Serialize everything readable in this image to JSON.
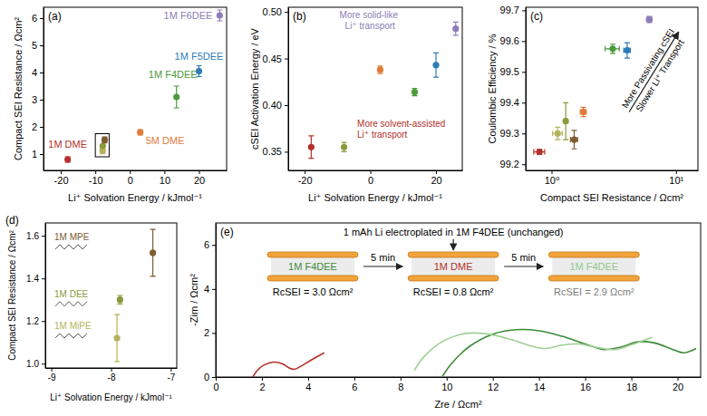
{
  "chart_data": [
    {
      "type": "scatter",
      "title": "(a)",
      "x_label": "Li⁺ Solvation Energy / kJmol⁻¹",
      "y_label": "Compact SEI Resistance / Ωcm²",
      "xlim": [
        -25,
        28
      ],
      "xticks": [
        -20,
        -10,
        0,
        10,
        20
      ],
      "ylim": [
        0.4,
        6.4
      ],
      "yticks": [
        1,
        2,
        3,
        4,
        5,
        6
      ],
      "series": [
        {
          "name": "1M DME",
          "color": "#b5302a",
          "x": [
            -18
          ],
          "values": [
            0.8
          ],
          "errors": [
            0.1
          ]
        },
        {
          "color": "#b3b35c",
          "x": [
            -7.9
          ],
          "values": [
            1.12
          ],
          "errors": [
            0.11
          ]
        },
        {
          "color": "#8c9a3c",
          "x": [
            -7.85
          ],
          "values": [
            1.3
          ],
          "errors": [
            0.02
          ]
        },
        {
          "color": "#7d5c2e",
          "x": [
            -7.3
          ],
          "values": [
            1.52
          ],
          "errors": [
            0.11
          ]
        },
        {
          "name": "5M DME",
          "color": "#e07b39",
          "x": [
            3
          ],
          "values": [
            1.8
          ],
          "errors": [
            0.1
          ]
        },
        {
          "name": "1M F4DEE",
          "color": "#4a9a3c",
          "x": [
            13.5
          ],
          "values": [
            3.1
          ],
          "errors": [
            0.4
          ]
        },
        {
          "name": "1M F5DEE",
          "color": "#2e7bb5",
          "x": [
            20
          ],
          "values": [
            4.05
          ],
          "errors": [
            0.2
          ]
        },
        {
          "name": "1M F6DEE",
          "color": "#8c7fb8",
          "x": [
            26
          ],
          "values": [
            6.1
          ],
          "errors": [
            0.2
          ]
        }
      ]
    },
    {
      "type": "scatter",
      "title": "(b)",
      "x_label": "Li⁺ Solvation Energy / kJmol⁻¹",
      "y_label": "cSEI Activation Energy / eV",
      "xlim": [
        -25,
        28
      ],
      "xticks": [
        -20,
        0,
        20
      ],
      "ylim": [
        0.33,
        0.505
      ],
      "yticks": [
        0.35,
        {
          "value": 0.4,
          "label": "0.40"
        },
        0.45,
        {
          "value": 0.5,
          "label": "0.50"
        }
      ],
      "series": [
        {
          "color": "#b5302a",
          "x": [
            -18
          ],
          "values": [
            0.355
          ],
          "errors": [
            0.012
          ]
        },
        {
          "color": "#8c9a3c",
          "x": [
            -8
          ],
          "values": [
            0.355
          ],
          "errors": [
            0.005
          ]
        },
        {
          "color": "#e07b39",
          "x": [
            3
          ],
          "values": [
            0.438
          ],
          "errors": [
            0.004
          ]
        },
        {
          "color": "#4a9a3c",
          "x": [
            13.5
          ],
          "values": [
            0.414
          ],
          "errors": [
            0.004
          ]
        },
        {
          "color": "#2e7bb5",
          "x": [
            20
          ],
          "values": [
            0.443
          ],
          "errors": [
            0.013
          ]
        },
        {
          "color": "#8c7fb8",
          "x": [
            26
          ],
          "values": [
            0.482
          ],
          "errors": [
            0.007
          ]
        }
      ],
      "annotations": [
        {
          "text": "More solid-like Li⁺ transport",
          "color": "#8c7fb8"
        },
        {
          "text": "More solvent-assisted Li⁺ transport",
          "color": "#b5302a"
        }
      ]
    },
    {
      "type": "scatter",
      "title": "(c)",
      "log": "x",
      "x_label": "Compact SEI Resistance / Ωcm²",
      "y_label": "Coulombic Efficiency / %",
      "xlim": [
        0.62,
        15
      ],
      "xticks": [
        {
          "value": 1,
          "label": "10⁰"
        },
        {
          "value": 10,
          "label": "10¹"
        }
      ],
      "ylim": [
        99.18,
        99.71
      ],
      "yticks": [
        99.2,
        99.3,
        99.4,
        99.5,
        99.6,
        99.7
      ],
      "series": [
        {
          "color": "#b5302a",
          "x": [
            0.8
          ],
          "x_errors": [
            0.08
          ],
          "values": [
            99.24
          ],
          "errors": [
            0.008
          ]
        },
        {
          "color": "#b3b35c",
          "x": [
            1.12
          ],
          "x_errors": [
            0.1
          ],
          "values": [
            99.3
          ],
          "errors": [
            0.02
          ]
        },
        {
          "color": "#8c9a3c",
          "x": [
            1.3
          ],
          "x_errors": [
            0.03
          ],
          "values": [
            99.34
          ],
          "errors": [
            0.06
          ]
        },
        {
          "color": "#7d5c2e",
          "x": [
            1.52
          ],
          "x_errors": [
            0.1
          ],
          "values": [
            99.28
          ],
          "errors": [
            0.03
          ]
        },
        {
          "color": "#e07b39",
          "x": [
            1.8
          ],
          "x_errors": [
            0.1
          ],
          "values": [
            99.37
          ],
          "errors": [
            0.015
          ]
        },
        {
          "color": "#4a9a3c",
          "x": [
            3.1
          ],
          "x_errors": [
            0.4
          ],
          "values": [
            99.575
          ],
          "errors": [
            0.015
          ]
        },
        {
          "color": "#2e7bb5",
          "x": [
            4.05
          ],
          "x_errors": [
            0.25
          ],
          "values": [
            99.57
          ],
          "errors": [
            0.025
          ]
        },
        {
          "color": "#8c7fb8",
          "x": [
            6.1
          ],
          "x_errors": [
            0.3
          ],
          "values": [
            99.67
          ],
          "errors": [
            0.01
          ]
        }
      ],
      "annotations": [
        "More Passivating cSEI",
        "Slower Li⁺ Transport"
      ]
    },
    {
      "type": "scatter",
      "title": "(d)",
      "x_label": "Li⁺ Solvation Energy / kJmol⁻¹",
      "y_label": "Compact SEI Resistance / Ωcm²",
      "xlim": [
        -9.1,
        -6.9
      ],
      "xticks": [
        -9,
        -8,
        -7
      ],
      "ylim": [
        0.98,
        1.66
      ],
      "yticks": [
        {
          "value": 1,
          "label": "1.0"
        },
        1.2,
        1.4,
        1.6
      ],
      "series": [
        {
          "name": "1M MPE",
          "color": "#7d5c2e",
          "x": [
            -7.3
          ],
          "values": [
            1.52
          ],
          "errors": [
            0.11
          ]
        },
        {
          "name": "1M DEE",
          "color": "#8c9a3c",
          "x": [
            -7.85
          ],
          "values": [
            1.3
          ],
          "errors": [
            0.02
          ]
        },
        {
          "name": "1M MiPE",
          "color": "#b3b35c",
          "x": [
            -7.9
          ],
          "values": [
            1.12
          ],
          "errors": [
            0.11
          ]
        }
      ]
    },
    {
      "type": "line",
      "title": "(e)",
      "x_label": "Zre / Ωcm²",
      "y_label": "-Zim / Ωcm²",
      "xlim": [
        0,
        21
      ],
      "xticks": [
        0,
        2,
        4,
        6,
        8,
        10,
        12,
        14,
        16,
        18,
        20
      ],
      "ylim": [
        0,
        7
      ],
      "yticks": [
        0,
        2,
        4,
        6
      ],
      "series": [
        {
          "color": "#b5302a",
          "x": [
            1.6,
            1.8,
            2.1,
            2.5,
            2.9,
            3.2,
            3.4,
            3.7,
            4.1,
            4.7
          ],
          "values": [
            0,
            0.3,
            0.55,
            0.68,
            0.6,
            0.4,
            0.35,
            0.5,
            0.75,
            1.1
          ]
        },
        {
          "color": "#3d8b37",
          "x": [
            9.8,
            10.2,
            11,
            12,
            13,
            14,
            15,
            16,
            16.8,
            17.5,
            18.3,
            19,
            19.8,
            20.3,
            20.8
          ],
          "values": [
            0,
            0.6,
            1.4,
            1.95,
            2.15,
            2.1,
            1.85,
            1.5,
            1.25,
            1.35,
            1.6,
            1.55,
            1.25,
            1.1,
            1.3
          ]
        },
        {
          "color": "#9fcf95",
          "x": [
            8.6,
            9,
            9.8,
            10.8,
            11.8,
            12.8,
            13.7,
            14.3,
            15,
            15.7,
            16.5,
            17.3,
            18.1,
            18.9
          ],
          "values": [
            0.3,
            0.9,
            1.6,
            1.98,
            1.95,
            1.7,
            1.4,
            1.3,
            1.45,
            1.5,
            1.35,
            1.25,
            1.5,
            1.8
          ]
        }
      ],
      "annotations": {
        "header": "1 mAh Li electroplated in 1M F4DEE (unchanged)",
        "cells": [
          {
            "label": "1M F4DEE",
            "color": "#3d8b37",
            "resistance": "RcSEI = 3.0 Ωcm²"
          },
          {
            "label": "1M DME",
            "color": "#b5302a",
            "resistance": "RcSEI = 0.8 Ωcm²"
          },
          {
            "label": "1M F4DEE",
            "color": "#8fc98a",
            "resistance": "RcSEI = 2.9 Ωcm²"
          }
        ],
        "transitions": [
          "5 min",
          "5 min"
        ]
      }
    }
  ]
}
